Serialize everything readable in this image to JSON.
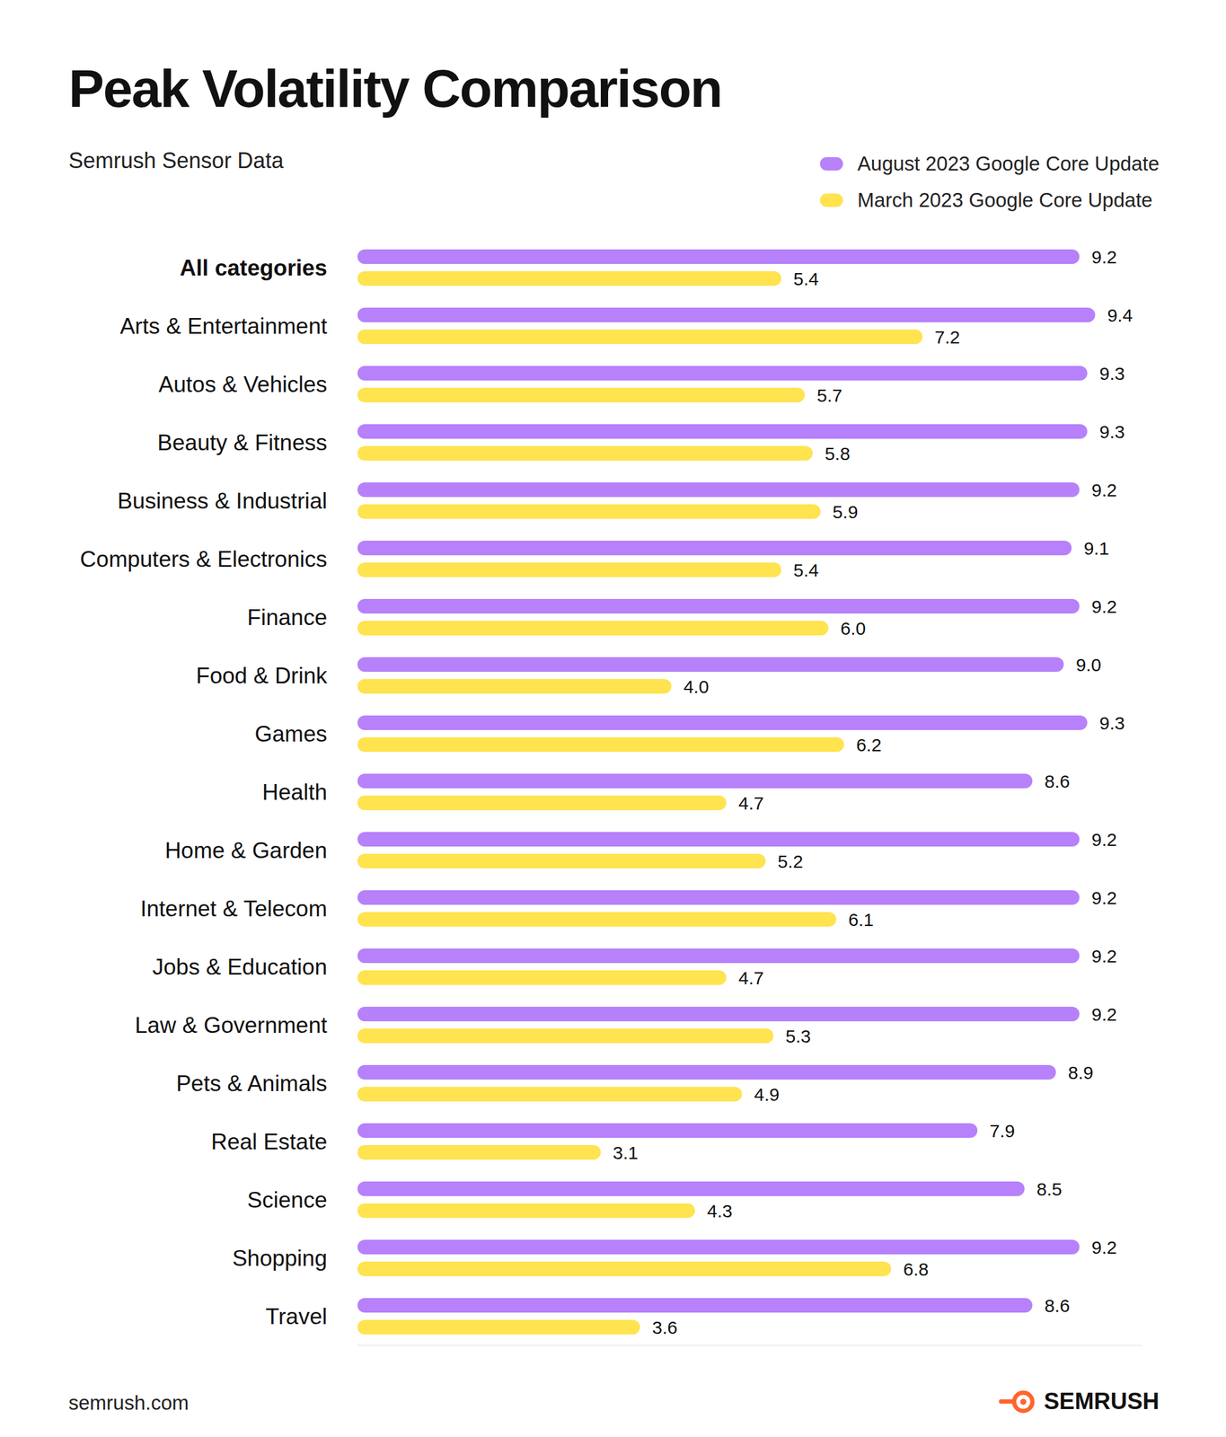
{
  "chart_data": {
    "type": "bar",
    "title": "Peak Volatility Comparison",
    "subtitle": "Semrush Sensor Data",
    "annotations": [
      "semrush.com",
      "SEMRUSH"
    ],
    "orientation": "horizontal",
    "legend": "upper right",
    "data_labels": true,
    "tick_labels": "y",
    "grid": false,
    "xlim": [
      0,
      10
    ],
    "categories": [
      "All categories",
      "Arts & Entertainment",
      "Autos & Vehicles",
      "Beauty & Fitness",
      "Business & Industrial",
      "Computers & Electronics",
      "Finance",
      "Food & Drink",
      "Games",
      "Health",
      "Home & Garden",
      "Internet & Telecom",
      "Jobs & Education",
      "Law & Government",
      "Pets & Animals",
      "Real Estate",
      "Science",
      "Shopping",
      "Travel"
    ],
    "series": [
      {
        "name": "August 2023 Google Core Update",
        "color": "#b681fa",
        "values": [
          9.2,
          9.4,
          9.3,
          9.3,
          9.2,
          9.1,
          9.2,
          9.0,
          9.3,
          8.6,
          9.2,
          9.2,
          9.2,
          9.2,
          8.9,
          7.9,
          8.5,
          9.2,
          8.6
        ],
        "value_labels": [
          "9.2",
          "9.4",
          "9.3",
          "9.3",
          "9.2",
          "9.1",
          "9.2",
          "9.0",
          "9.3",
          "8.6",
          "9.2",
          "9.2",
          "9.2",
          "9.2",
          "8.9",
          "7.9",
          "8.5",
          "9.2",
          "8.6"
        ]
      },
      {
        "name": "March 2023 Google Core Update",
        "color": "#ffe34f",
        "values": [
          5.4,
          7.2,
          5.7,
          5.8,
          5.9,
          5.4,
          6.0,
          4.0,
          6.2,
          4.7,
          5.2,
          6.1,
          4.7,
          5.3,
          4.9,
          3.1,
          4.3,
          6.8,
          3.6
        ],
        "value_labels": [
          "5.4",
          "7.2",
          "5.7",
          "5.8",
          "5.9",
          "5.4",
          "6.0",
          "4.0",
          "6.2",
          "4.7",
          "5.2",
          "6.1",
          "4.7",
          "5.3",
          "4.9",
          "3.1",
          "4.3",
          "6.8",
          "3.6"
        ]
      }
    ]
  }
}
